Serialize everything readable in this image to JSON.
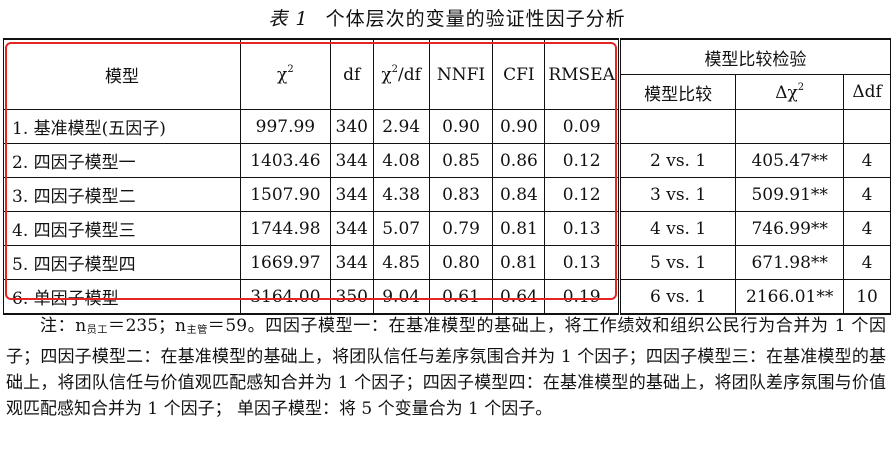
{
  "caption": {
    "number": "表 1",
    "title": "个体层次的变量的验证性因子分析"
  },
  "table": {
    "headers": {
      "model": "模型",
      "chi2": "χ",
      "chi2_sup": "2",
      "df": "df",
      "chi2df": "χ",
      "chi2df_sup": "2",
      "chi2df_suffix": "/df",
      "nnfi": "NNFI",
      "cfi": "CFI",
      "rmsea": "RMSEA",
      "group": "模型比较检验",
      "compare": "模型比较",
      "dchi2": "Δχ",
      "dchi2_sup": "2",
      "ddf": "Δdf"
    },
    "rows": [
      {
        "model": "1. 基准模型(五因子)",
        "chi2": "997.99",
        "df": "340",
        "chi2df": "2.94",
        "nnfi": "0.90",
        "cfi": "0.90",
        "rmsea": "0.09",
        "compare": "",
        "dchi2": "",
        "ddf": ""
      },
      {
        "model": "2. 四因子模型一",
        "chi2": "1403.46",
        "df": "344",
        "chi2df": "4.08",
        "nnfi": "0.85",
        "cfi": "0.86",
        "rmsea": "0.12",
        "compare": "2 vs. 1",
        "dchi2": "405.47**",
        "ddf": "4"
      },
      {
        "model": "3. 四因子模型二",
        "chi2": "1507.90",
        "df": "344",
        "chi2df": "4.38",
        "nnfi": "0.83",
        "cfi": "0.84",
        "rmsea": "0.12",
        "compare": "3 vs. 1",
        "dchi2": "509.91**",
        "ddf": "4"
      },
      {
        "model": "4. 四因子模型三",
        "chi2": "1744.98",
        "df": "344",
        "chi2df": "5.07",
        "nnfi": "0.79",
        "cfi": "0.81",
        "rmsea": "0.13",
        "compare": "4 vs. 1",
        "dchi2": "746.99**",
        "ddf": "4"
      },
      {
        "model": "5. 四因子模型四",
        "chi2": "1669.97",
        "df": "344",
        "chi2df": "4.85",
        "nnfi": "0.80",
        "cfi": "0.81",
        "rmsea": "0.13",
        "compare": "5 vs. 1",
        "dchi2": "671.98**",
        "ddf": "4"
      },
      {
        "model": "6. 单因子模型",
        "chi2": "3164.00",
        "df": "350",
        "chi2df": "9.04",
        "nnfi": "0.61",
        "cfi": "0.64",
        "rmsea": "0.19",
        "compare": "6 vs. 1",
        "dchi2": "2166.01**",
        "ddf": "10"
      }
    ]
  },
  "note": {
    "prefix": "注：n",
    "sub1": "员工",
    "part1": "＝235；n",
    "sub2": "主管",
    "part2": "＝59。四因子模型一：在基准模型的基础上，将工作绩效和组织公民行为合并为 1 个因子；四因子模型二：在基准模型的基础上，将团队信任与差序氛围合并为 1 个因子；四因子模型三：在基准模型的基础上，将团队信任与价值观匹配感知合并为 1 个因子；四因子模型四：在基准模型的基础上，将团队差序氛围与价值观匹配感知合并为 1 个因子； 单因子模型：将 5 个变量合为 1 个因子。"
  },
  "colors": {
    "highlight_box": "#e52424",
    "text": "#111111"
  }
}
